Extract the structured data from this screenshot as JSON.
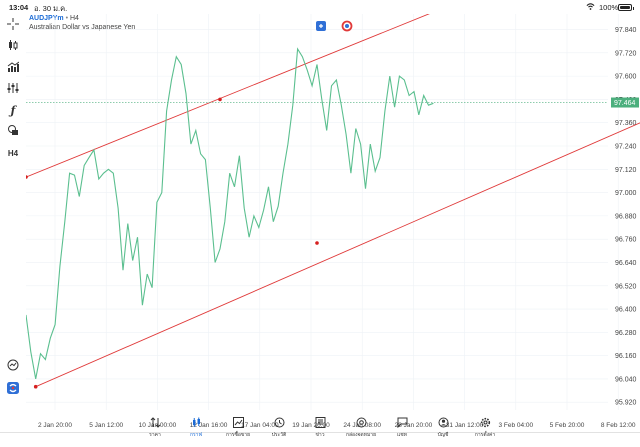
{
  "status_bar": {
    "time": "13:04",
    "date": "อ. 30 ม.ค.",
    "battery": "100%"
  },
  "chart_header": {
    "symbol": "AUDJPYm",
    "separator": "•",
    "timeframe": "H4",
    "description": "Australian Dollar vs Japanese Yen"
  },
  "toolbar": {
    "timeframe_label": "H4"
  },
  "colors": {
    "line": "#5bbf8f",
    "channel": "#e03a3a",
    "accent": "#1a6bd6",
    "price_tag": "#4caf7d",
    "grid": "#eef2f6"
  },
  "tabs": [
    {
      "label": "ราคา",
      "icon": "arrows-updown-icon"
    },
    {
      "label": "กราฟ",
      "icon": "candles-icon",
      "active": true
    },
    {
      "label": "การซื้อขาย",
      "icon": "trade-chart-icon"
    },
    {
      "label": "ประวัติ",
      "icon": "history-icon"
    },
    {
      "label": "ข่าว",
      "icon": "news-icon"
    },
    {
      "label": "กล่องจดหมาย",
      "icon": "mail-at-icon"
    },
    {
      "label": "แชท",
      "icon": "chat-icon"
    },
    {
      "label": "บัญชี",
      "icon": "account-icon"
    },
    {
      "label": "การตั้งค่า",
      "icon": "settings-icon"
    }
  ],
  "chart_data": {
    "type": "line",
    "series": [
      {
        "values": [
          96.37,
          96.18,
          96.04,
          96.17,
          96.14,
          96.25,
          96.32,
          96.62,
          96.85,
          97.1,
          97.09,
          96.98,
          97.14,
          97.18,
          97.22,
          97.07,
          97.1,
          97.12,
          97.1,
          96.92,
          96.6,
          96.84,
          96.65,
          96.77,
          96.42,
          96.58,
          96.51,
          96.95,
          97.0,
          97.42,
          97.58,
          97.7,
          97.66,
          97.51,
          97.25,
          97.32,
          97.2,
          97.17,
          96.92,
          96.64,
          96.71,
          96.85,
          97.1,
          97.03,
          97.19,
          96.92,
          96.77,
          96.88,
          96.82,
          96.91,
          97.03,
          96.85,
          96.93,
          97.1,
          97.25,
          97.45,
          97.74,
          97.7,
          97.63,
          97.55,
          97.66,
          97.48,
          97.32,
          97.55,
          97.58,
          97.45,
          97.3,
          97.1,
          97.33,
          97.25,
          97.02,
          97.25,
          97.11,
          97.18,
          97.42,
          97.6,
          97.44,
          97.6,
          97.58,
          97.5,
          97.52,
          97.4,
          97.5,
          97.45,
          97.46
        ]
      }
    ],
    "price_ticks": [
      "97.840",
      "97.720",
      "97.600",
      "97.480",
      "97.360",
      "97.240",
      "97.120",
      "97.000",
      "96.880",
      "96.760",
      "96.640",
      "96.520",
      "96.400",
      "96.280",
      "96.160",
      "96.040",
      "95.920"
    ],
    "price_tick_values": [
      97.84,
      97.72,
      97.6,
      97.48,
      97.36,
      97.24,
      97.12,
      97.0,
      96.88,
      96.76,
      96.64,
      96.52,
      96.4,
      96.28,
      96.16,
      96.04,
      95.92
    ],
    "time_ticks": [
      "2 Jan 20:00",
      "5 Jan 12:00",
      "10 Jan 00:00",
      "12 Jan 16:00",
      "17 Jan 04:00",
      "19 Jan 20:00",
      "24 Jan 08:00",
      "28 Jan 20:00",
      "31 Jan 12:00",
      "3 Feb 04:00",
      "5 Feb 20:00",
      "8 Feb 12:00"
    ],
    "current_price": "97.464",
    "current_price_value": 97.464,
    "ylim": [
      95.88,
      97.92
    ],
    "channel_lines": [
      {
        "from": {
          "bar": 0,
          "price": 97.08
        },
        "to": {
          "bar": 85,
          "price": 97.94
        }
      },
      {
        "from": {
          "bar": 2,
          "price": 96.0
        },
        "to": {
          "bar": 145,
          "price": 97.56
        }
      }
    ],
    "channel_points": [
      {
        "bar": 0,
        "price": 97.08
      },
      {
        "bar": 40,
        "price": 97.48
      },
      {
        "bar": 2,
        "price": 96.0
      },
      {
        "bar": 60,
        "price": 96.74
      },
      {
        "bar": 145,
        "price": 97.56
      }
    ]
  }
}
